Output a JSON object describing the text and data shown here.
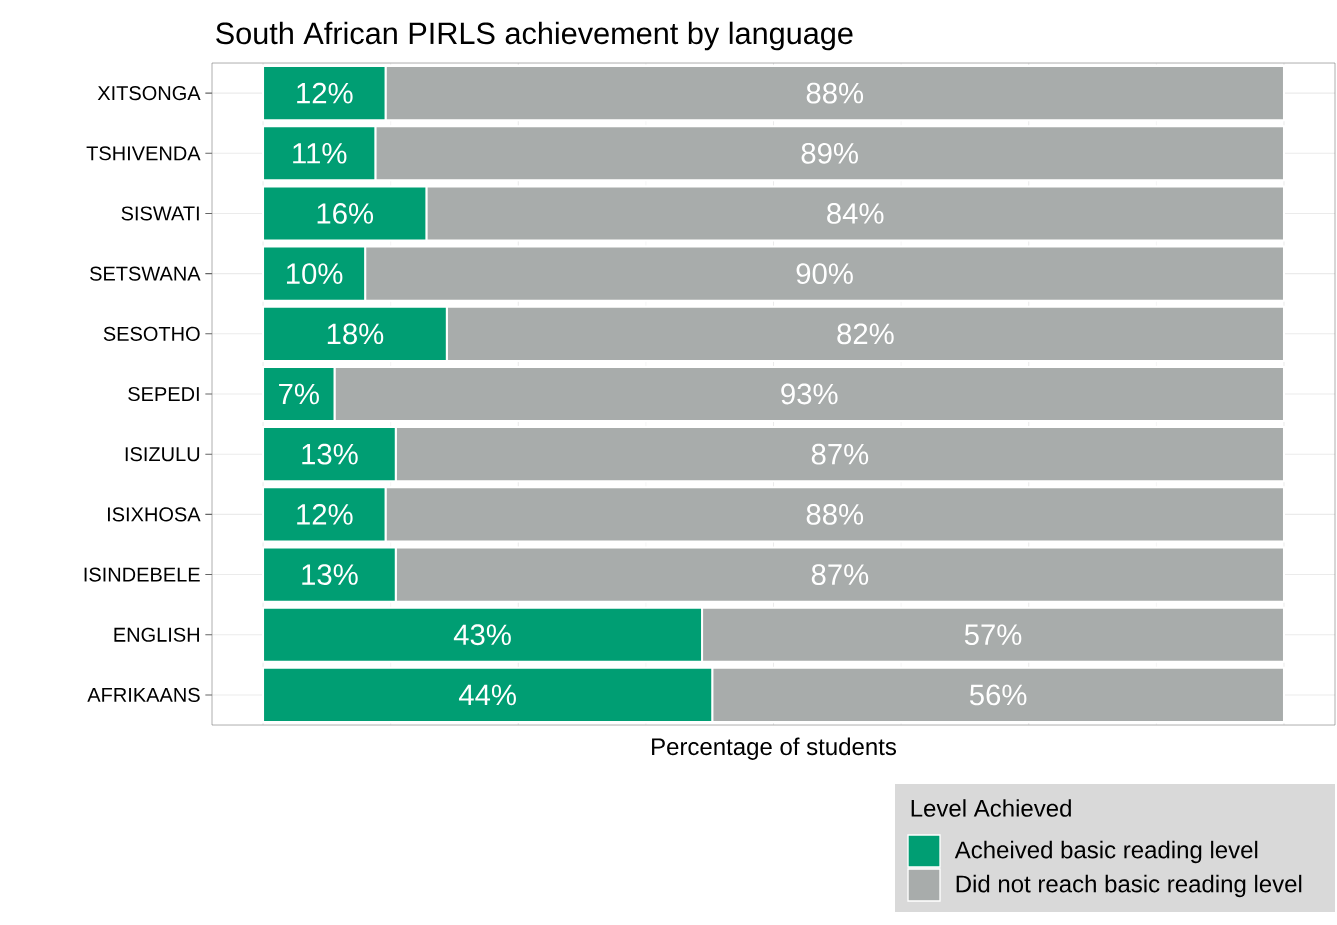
{
  "chart_data": {
    "type": "bar",
    "orientation": "horizontal",
    "stacked": true,
    "title": "South African PIRLS achievement by language",
    "xlabel": "Percentage of students",
    "legend_title": "Level Achieved",
    "categories": [
      "XITSONGA",
      "TSHIVENDA",
      "SISWATI",
      "SETSWANA",
      "SESOTHO",
      "SEPEDI",
      "ISIZULU",
      "ISIXHOSA",
      "ISINDEBELE",
      "ENGLISH",
      "AFRIKAANS"
    ],
    "series": [
      {
        "name": "Acheived basic reading level",
        "color": "#009e73",
        "values": [
          12,
          11,
          16,
          10,
          18,
          7,
          13,
          12,
          13,
          43,
          44
        ],
        "value_labels": [
          "12%",
          "11%",
          "16%",
          "10%",
          "18%",
          "7%",
          "13%",
          "12%",
          "13%",
          "43%",
          "44%"
        ]
      },
      {
        "name": "Did not reach basic reading level",
        "color": "#a8acab",
        "values": [
          88,
          89,
          84,
          90,
          82,
          93,
          87,
          88,
          87,
          57,
          56
        ],
        "value_labels": [
          "88%",
          "89%",
          "84%",
          "90%",
          "82%",
          "93%",
          "87%",
          "88%",
          "87%",
          "57%",
          "56%"
        ]
      }
    ],
    "xlim": [
      -5,
      105
    ],
    "xticks": [
      {
        "value": 0,
        "label": null
      },
      {
        "value": 25,
        "label": null
      },
      {
        "value": 50,
        "label": null
      },
      {
        "value": 75,
        "label": null
      },
      {
        "value": 100,
        "label": null
      }
    ],
    "tick_labels": "y",
    "grid": true,
    "legend": "bottom right"
  }
}
